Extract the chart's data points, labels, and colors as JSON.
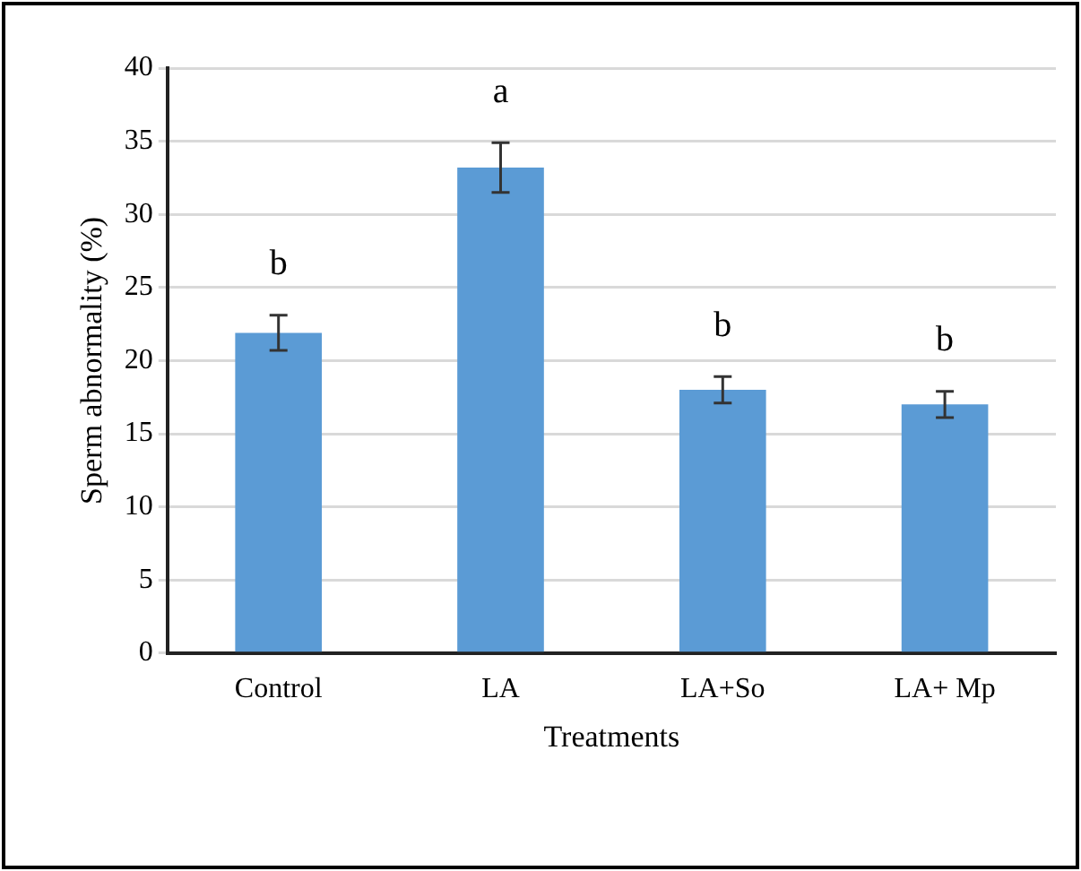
{
  "chart_data": {
    "type": "bar",
    "xlabel": "Treatments",
    "ylabel": "Sperm abnormality (%)",
    "categories": [
      "Control",
      "LA",
      "LA+So",
      "LA+ Mp"
    ],
    "values": [
      21.9,
      33.2,
      18.0,
      17.0
    ],
    "errors": [
      1.2,
      1.7,
      0.9,
      0.9
    ],
    "color": "#5b9bd5",
    "ylim": [
      0,
      40
    ],
    "yticks": [
      0,
      5,
      10,
      15,
      20,
      25,
      30,
      35,
      40
    ],
    "grid": "y",
    "annotations": [
      "b",
      "a",
      "b",
      "b"
    ]
  }
}
